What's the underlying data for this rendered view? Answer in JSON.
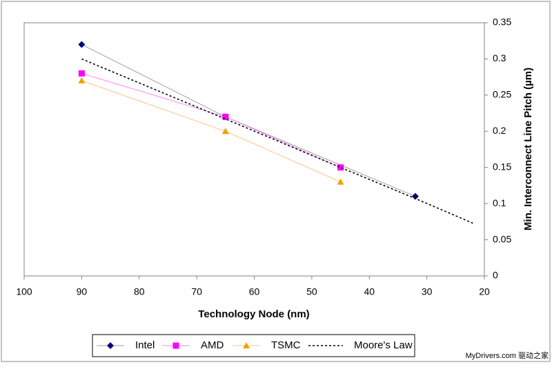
{
  "chart_data": {
    "type": "line",
    "xlabel": "Technology Node (nm)",
    "ylabel": "Min. Interconnect Line Pitch (µm)",
    "xlim": [
      100,
      20
    ],
    "xticks": [
      100,
      90,
      80,
      70,
      60,
      50,
      40,
      30,
      20
    ],
    "ylim": [
      0,
      0.35
    ],
    "yticks": [
      0,
      0.05,
      0.1,
      0.15,
      0.2,
      0.25,
      0.3,
      0.35
    ],
    "legend": "bottom",
    "series": [
      {
        "name": "Intel",
        "color": "#000080",
        "line_color": "#a0a0a0",
        "marker": "diamond",
        "dash": false,
        "x": [
          90,
          65,
          32
        ],
        "values": [
          0.32,
          0.22,
          0.11
        ]
      },
      {
        "name": "AMD",
        "color": "#ff00ff",
        "line_color": "#ff80ff",
        "marker": "square",
        "dash": false,
        "x": [
          90,
          65,
          45
        ],
        "values": [
          0.28,
          0.22,
          0.15
        ]
      },
      {
        "name": "TSMC",
        "color": "#f0a000",
        "line_color": "#ffc080",
        "marker": "triangle",
        "dash": false,
        "x": [
          90,
          65,
          45
        ],
        "values": [
          0.27,
          0.2,
          0.13
        ]
      },
      {
        "name": "Moore's Law",
        "color": "#000000",
        "line_color": "#000000",
        "marker": "none",
        "dash": true,
        "x": [
          90,
          65,
          45,
          32,
          22
        ],
        "values": [
          0.3,
          0.217,
          0.15,
          0.107,
          0.073
        ]
      }
    ]
  },
  "watermark": "MyDrivers.com 驱动之家"
}
